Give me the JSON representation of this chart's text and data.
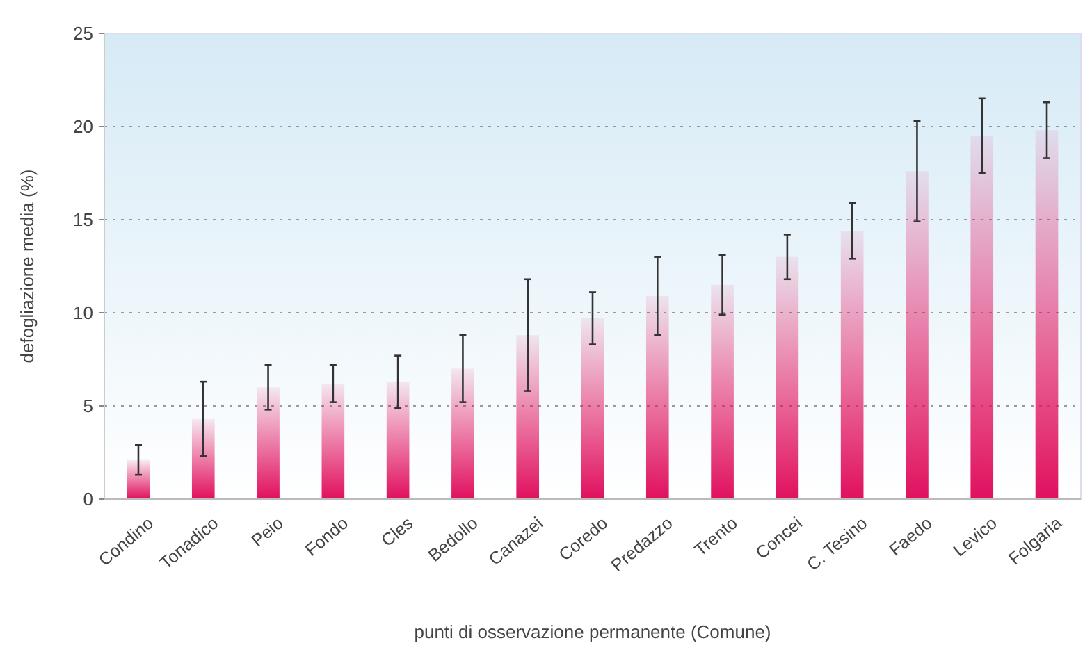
{
  "chart_data": {
    "type": "bar",
    "xlabel": "punti di osservazione permanente (Comune)",
    "ylabel": "defogliazione media (%)",
    "categories": [
      "Condino",
      "Tonadico",
      "Peio",
      "Fondo",
      "Cles",
      "Bedollo",
      "Canazei",
      "Coredo",
      "Predazzo",
      "Trento",
      "Concei",
      "C. Tesino",
      "Faedo",
      "Levico",
      "Folgaria"
    ],
    "values": [
      2.1,
      4.3,
      6.0,
      6.2,
      6.3,
      7.0,
      8.8,
      9.7,
      10.9,
      11.5,
      13.0,
      14.4,
      17.6,
      19.5,
      19.8
    ],
    "errors": [
      0.8,
      2.0,
      1.2,
      1.0,
      1.4,
      1.8,
      3.0,
      1.4,
      2.1,
      1.6,
      1.2,
      1.5,
      2.7,
      2.0,
      1.5
    ],
    "color": "#e0105e",
    "ylim": [
      0,
      25
    ],
    "yticks": [
      0,
      5,
      10,
      15,
      20,
      25
    ],
    "grid": "y"
  }
}
